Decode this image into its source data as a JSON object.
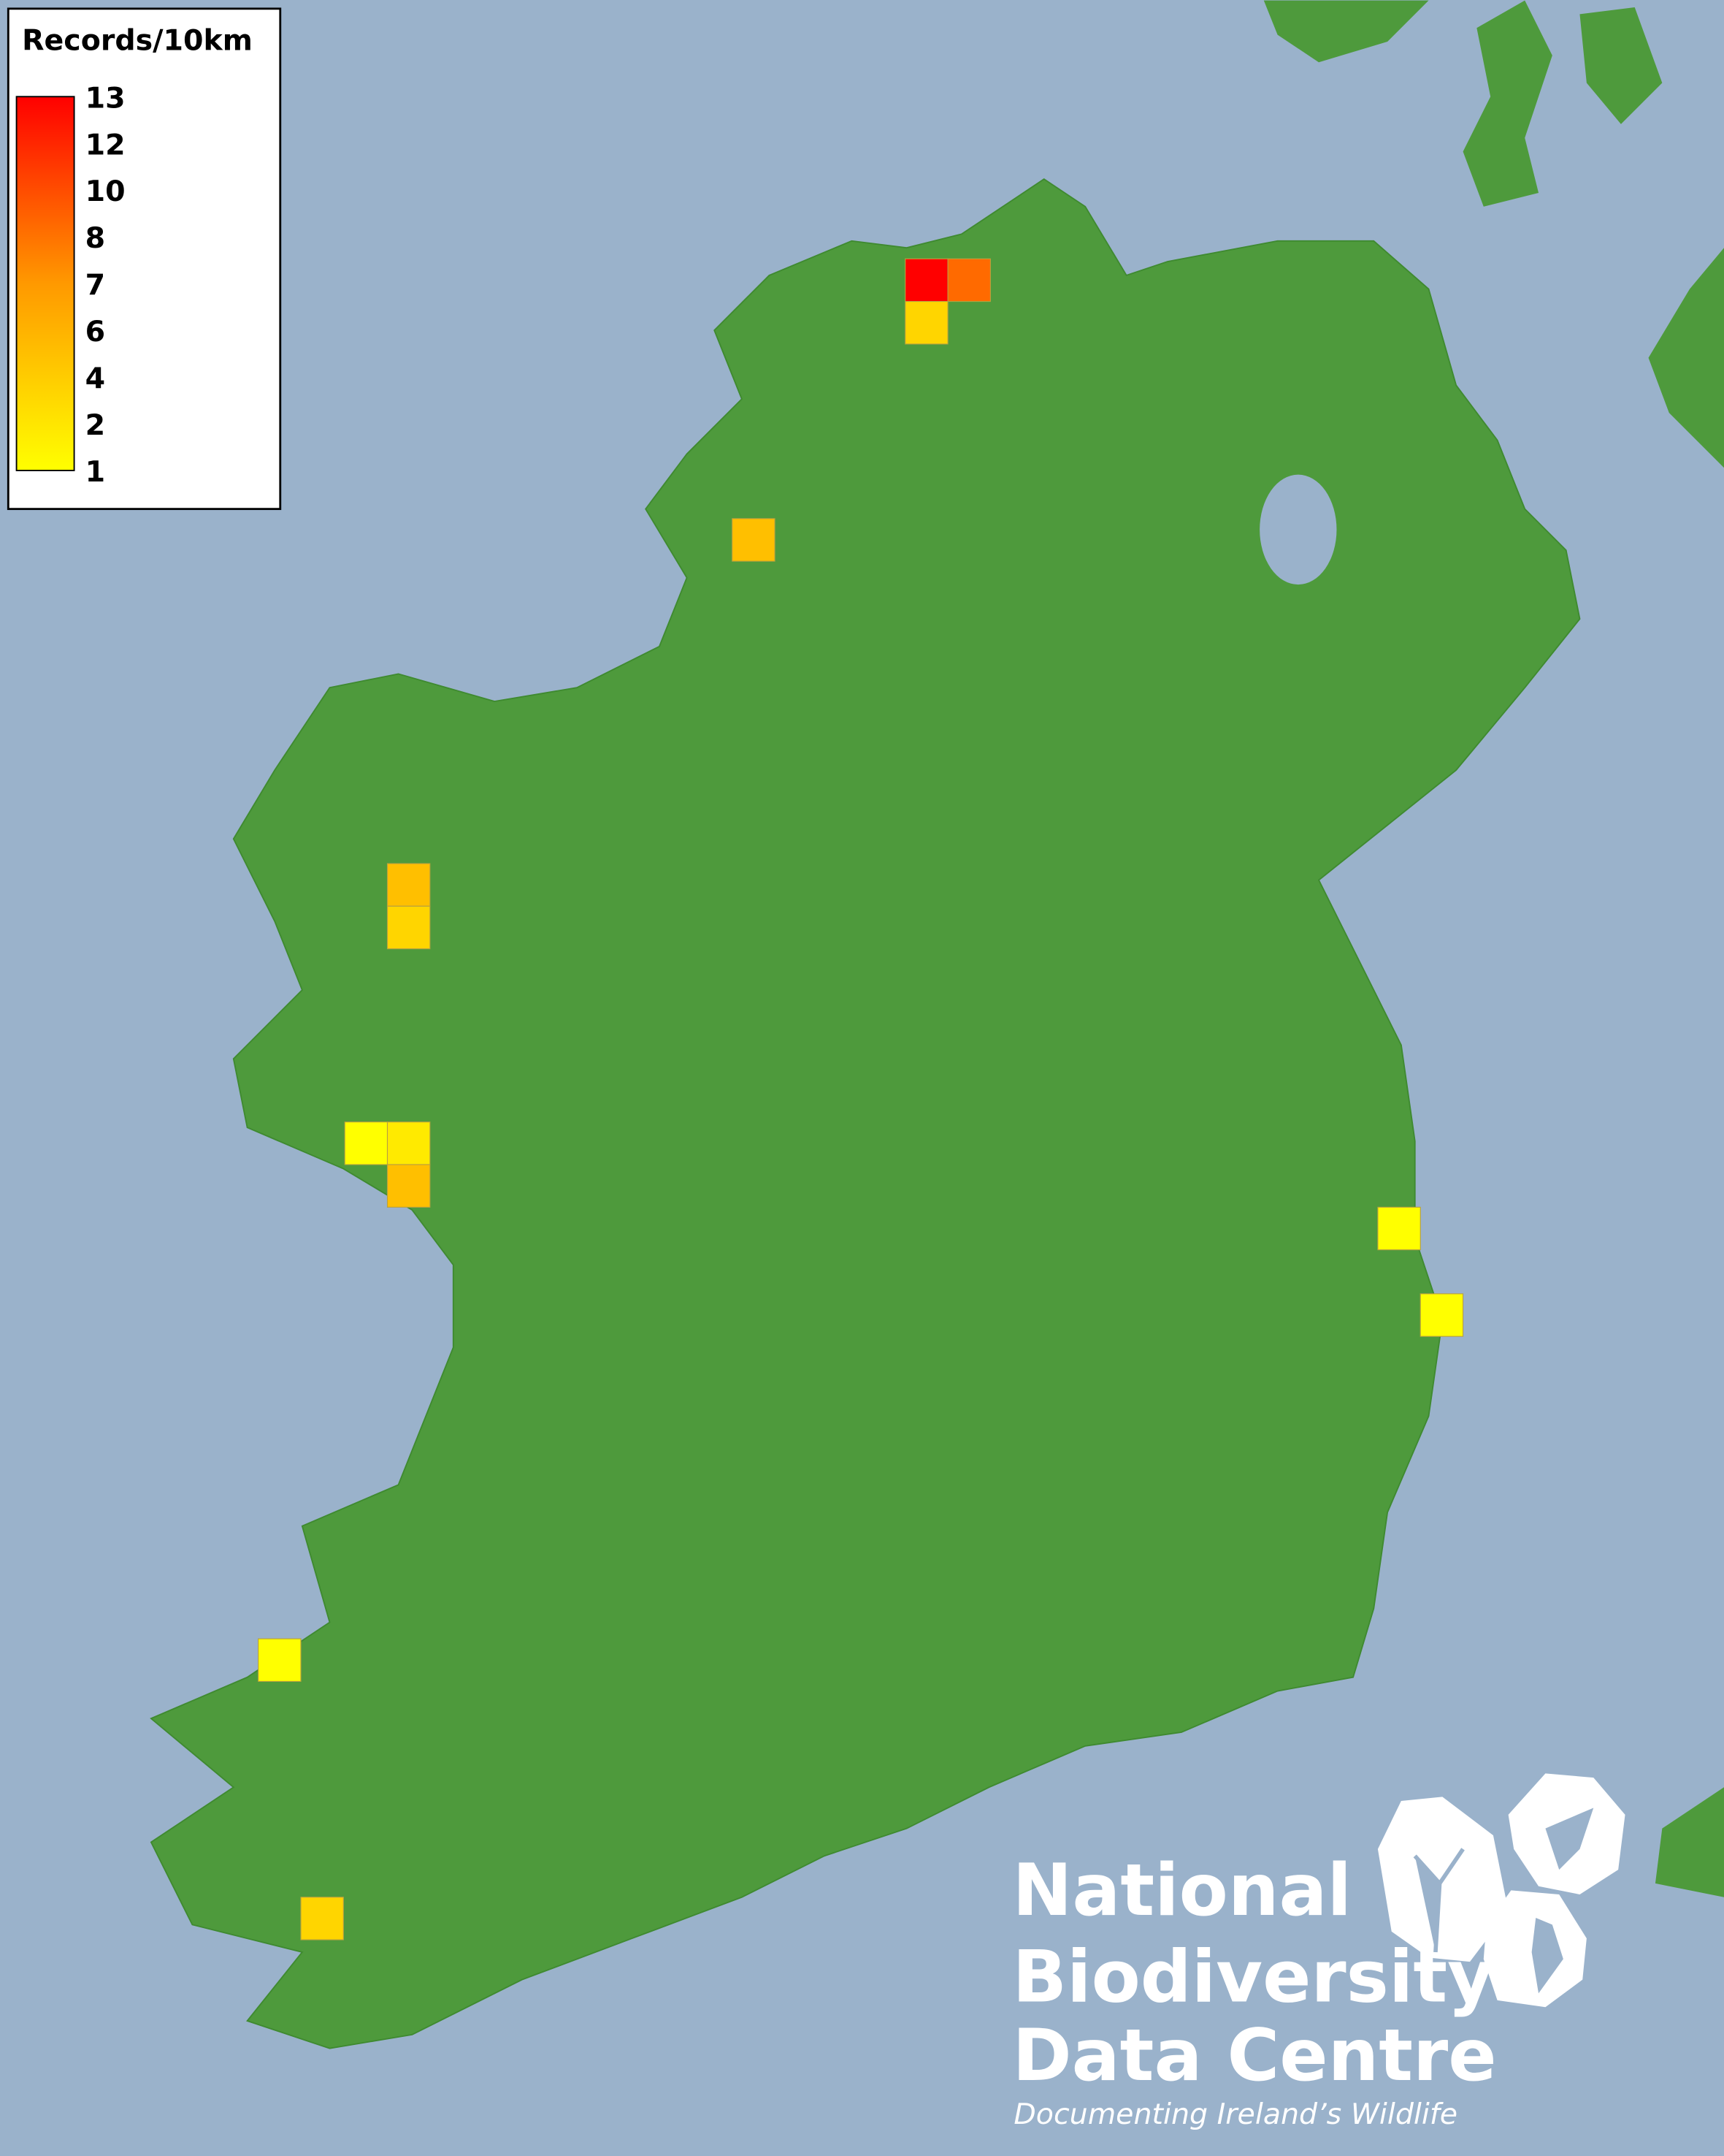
{
  "colors": {
    "sea": "#9ab2cb",
    "land": "#4e9a3c",
    "low": "#ffff00",
    "high": "#ff0000"
  },
  "legend": {
    "title": "Records/10km",
    "ticks": [
      "13",
      "12",
      "10",
      "8",
      "7",
      "6",
      "4",
      "2",
      "1"
    ]
  },
  "records": [
    13,
    8,
    3,
    4,
    4,
    3,
    1,
    2,
    4,
    1,
    1,
    1,
    3
  ],
  "logo": {
    "line1": "National",
    "line2": "Biodiversity",
    "line3": "Data Centre",
    "tagline": "Documenting Ireland’s Wildlife",
    "icons": [
      "tree-icon",
      "butterfly-icon",
      "seahorse-icon"
    ]
  }
}
